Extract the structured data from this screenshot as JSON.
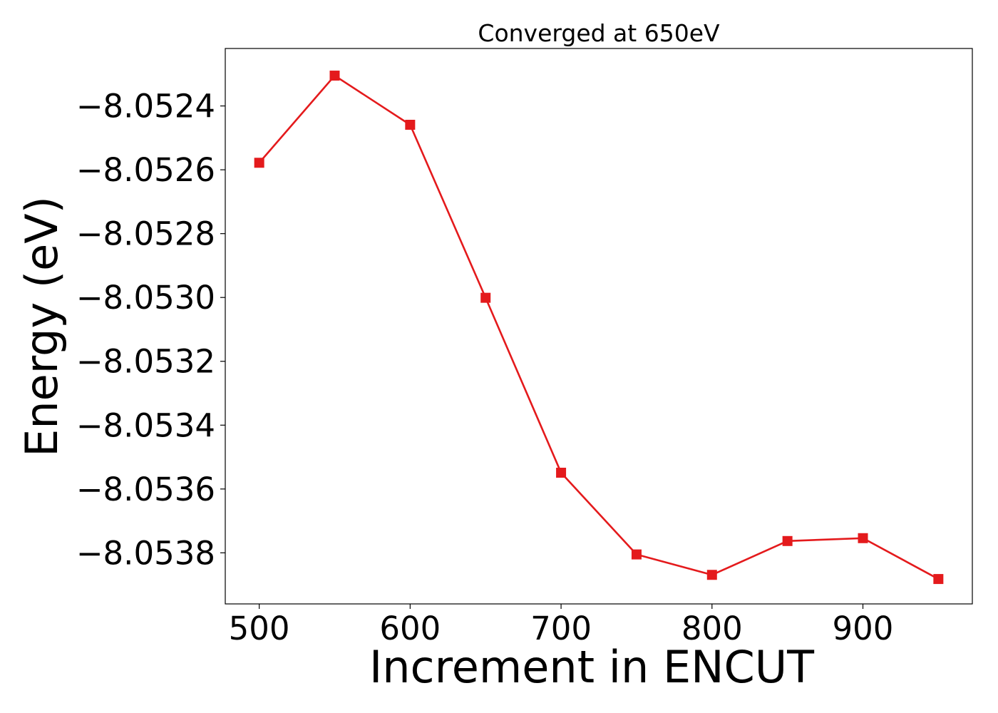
{
  "chart_data": {
    "type": "line",
    "title": "Converged at 650eV",
    "xlabel": "Increment in ENCUT",
    "ylabel": "Energy (eV)",
    "xlim": [
      477.5,
      972.5
    ],
    "ylim": [
      -8.05396,
      -8.05222
    ],
    "x_ticks": [
      500,
      600,
      700,
      800,
      900
    ],
    "x_tick_labels": [
      "500",
      "600",
      "700",
      "800",
      "900"
    ],
    "y_ticks": [
      -8.0524,
      -8.0526,
      -8.0528,
      -8.053,
      -8.0532,
      -8.0534,
      -8.0536,
      -8.0538
    ],
    "y_tick_labels": [
      "−8.0524",
      "−8.0526",
      "−8.0528",
      "−8.0530",
      "−8.0532",
      "−8.0534",
      "−8.0536",
      "−8.0538"
    ],
    "grid": false,
    "legend": "none",
    "series": [
      {
        "color": "#e41a1c",
        "marker": "square",
        "x": [
          500,
          550,
          600,
          650,
          700,
          750,
          800,
          850,
          900,
          950
        ],
        "y": [
          -8.052578,
          -8.052305,
          -8.052459,
          -8.053001,
          -8.053549,
          -8.053805,
          -8.053869,
          -8.053763,
          -8.053754,
          -8.053882
        ]
      }
    ]
  }
}
